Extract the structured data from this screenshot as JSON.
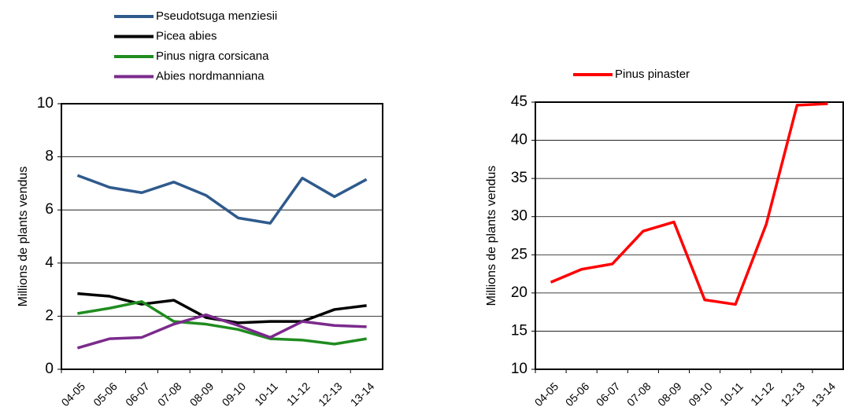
{
  "chart_data": [
    {
      "type": "line",
      "y_label": "Millions de plants vendus",
      "categories": [
        "04-05",
        "05-06",
        "06-07",
        "07-08",
        "08-09",
        "09-10",
        "10-11",
        "11-12",
        "12-13",
        "13-14"
      ],
      "series": [
        {
          "name": "Pseudotsuga menziesii",
          "color": "#2f5a8c",
          "values": [
            7.3,
            6.85,
            6.65,
            7.05,
            6.55,
            5.7,
            5.5,
            7.2,
            6.5,
            7.15
          ]
        },
        {
          "name": "Picea abies",
          "color": "#000000",
          "values": [
            2.85,
            2.75,
            2.45,
            2.6,
            1.95,
            1.75,
            1.8,
            1.8,
            2.25,
            2.4
          ]
        },
        {
          "name": "Pinus nigra corsicana",
          "color": "#1f8c1f",
          "values": [
            2.1,
            2.3,
            2.55,
            1.8,
            1.7,
            1.5,
            1.15,
            1.1,
            0.95,
            1.15
          ]
        },
        {
          "name": "Abies nordmanniana",
          "color": "#7b2a8c",
          "values": [
            0.8,
            1.15,
            1.2,
            1.7,
            2.05,
            1.65,
            1.2,
            1.8,
            1.65,
            1.6
          ]
        }
      ],
      "ylim": [
        0,
        10
      ],
      "yticks": [
        0,
        2,
        4,
        6,
        8,
        10
      ],
      "grid": true,
      "legend": "top"
    },
    {
      "type": "line",
      "y_label": "Millions de plants vendus",
      "categories": [
        "04-05",
        "05-06",
        "06-07",
        "07-08",
        "08-09",
        "09-10",
        "10-11",
        "11-12",
        "12-13",
        "13-14"
      ],
      "series": [
        {
          "name": "Pinus pinaster",
          "color": "#ff0000",
          "values": [
            21.4,
            23.1,
            23.8,
            28.1,
            29.3,
            19.1,
            18.5,
            29,
            44.6,
            44.8
          ]
        }
      ],
      "ylim": [
        10,
        45
      ],
      "yticks": [
        10,
        15,
        20,
        25,
        30,
        35,
        40,
        45
      ],
      "grid": true,
      "legend": "top"
    }
  ]
}
